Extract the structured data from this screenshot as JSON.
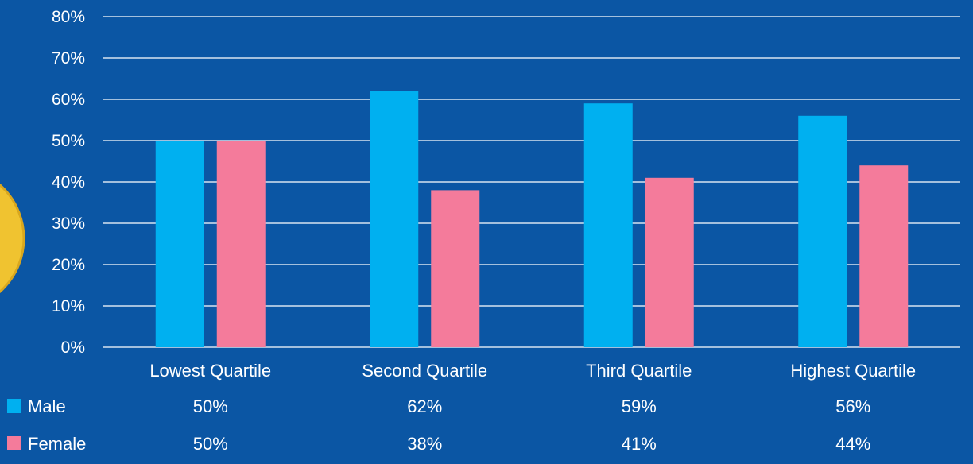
{
  "chart_data": {
    "type": "bar",
    "categories": [
      "Lowest Quartile",
      "Second Quartile",
      "Third Quartile",
      "Highest Quartile"
    ],
    "series": [
      {
        "name": "Male",
        "values": [
          50,
          62,
          59,
          56
        ],
        "labels": [
          "50%",
          "62%",
          "59%",
          "56%"
        ],
        "color": "#00b0f0"
      },
      {
        "name": "Female",
        "values": [
          50,
          38,
          41,
          44
        ],
        "labels": [
          "50%",
          "38%",
          "41%",
          "44%"
        ],
        "color": "#f47b9b"
      }
    ],
    "ylim": [
      0,
      80
    ],
    "yticks": [
      0,
      10,
      20,
      30,
      40,
      50,
      60,
      70,
      80
    ],
    "ytick_labels": [
      "0%",
      "10%",
      "20%",
      "30%",
      "40%",
      "50%",
      "60%",
      "70%",
      "80%"
    ],
    "grid": true,
    "legend": "data-table-left",
    "title": "",
    "xlabel": "",
    "ylabel": ""
  },
  "colors": {
    "background": "#0b56a4",
    "gridline": "#ffffff",
    "decor_circle": "#f0c330"
  }
}
